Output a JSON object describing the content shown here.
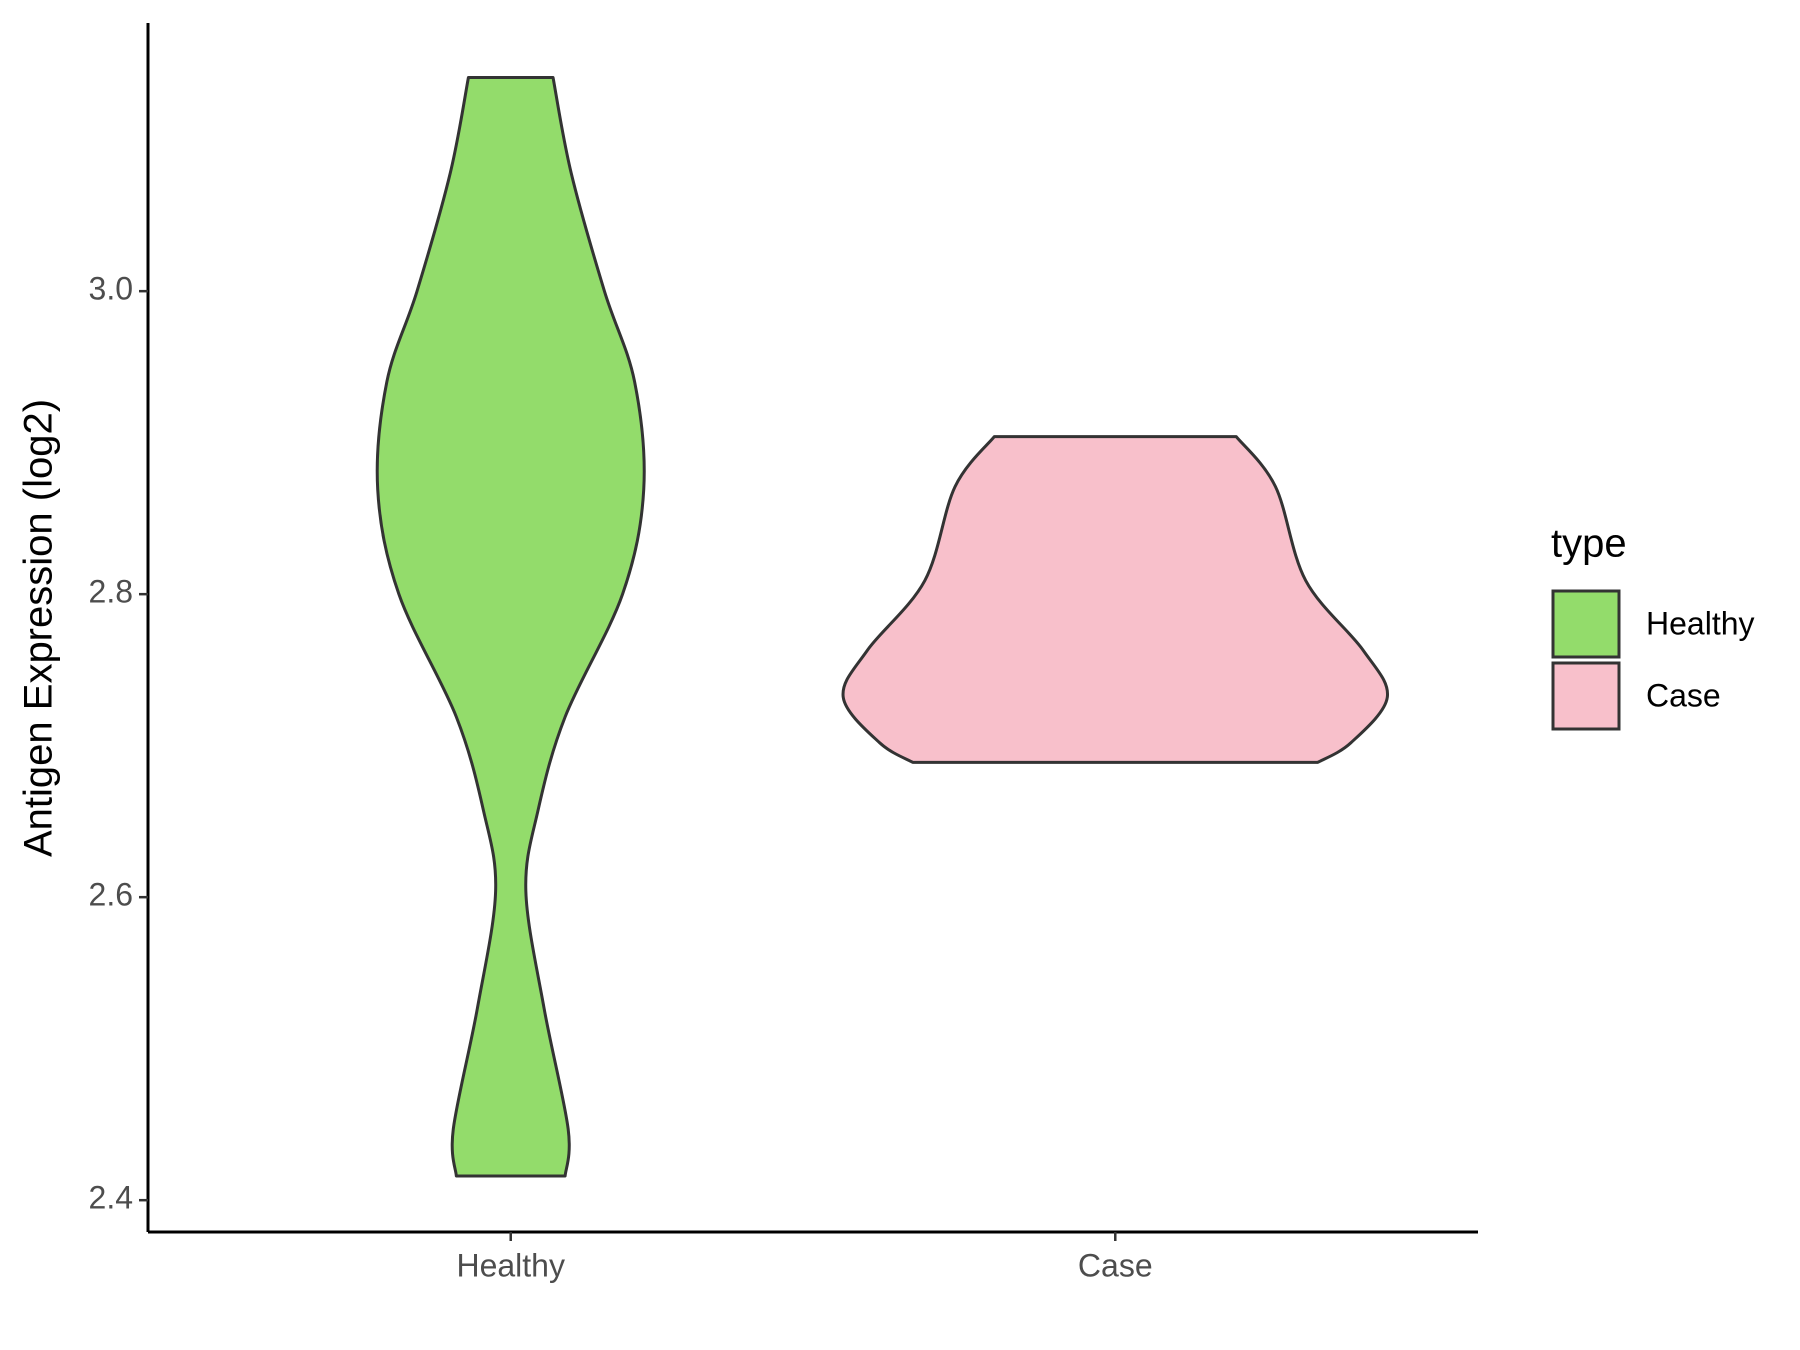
{
  "chart_data": {
    "type": "violin",
    "ylabel": "Antigen Expression (log2)",
    "categories": [
      "Healthy",
      "Case"
    ],
    "series": [
      {
        "name": "Healthy",
        "color": "#93dc6b",
        "y": [
          3.141,
          3.078,
          3.0,
          2.94,
          2.869,
          2.8,
          2.719,
          2.657,
          2.604,
          2.527,
          2.447,
          2.416
        ],
        "widths": [
          0.14,
          0.2,
          0.31,
          0.41,
          0.44,
          0.37,
          0.18,
          0.09,
          0.05,
          0.11,
          0.19,
          0.18
        ]
      },
      {
        "name": "Case",
        "color": "#f8c0cb",
        "y": [
          2.904,
          2.871,
          2.809,
          2.763,
          2.732,
          2.702,
          2.689
        ],
        "widths": [
          0.4,
          0.53,
          0.63,
          0.82,
          0.9,
          0.78,
          0.67
        ]
      }
    ],
    "ylim": [
      2.379,
      3.177
    ],
    "yticks": [
      {
        "value": 2.4,
        "label": "2.4"
      },
      {
        "value": 2.6,
        "label": "2.6"
      },
      {
        "value": 2.8,
        "label": "2.8"
      },
      {
        "value": 3.0,
        "label": "3.0"
      }
    ],
    "legend_title": "type",
    "legend": "right",
    "grid": false
  }
}
